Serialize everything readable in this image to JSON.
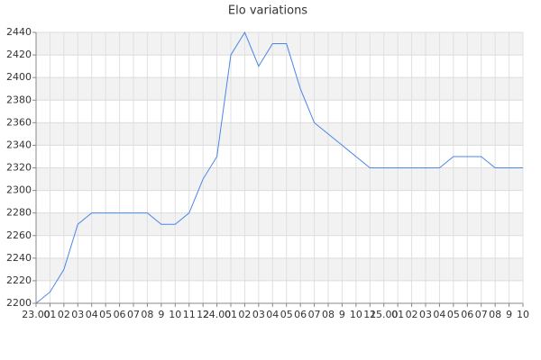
{
  "chart_data": {
    "type": "line",
    "title": "Elo variations",
    "categories": [
      "23.00",
      "01",
      "02",
      "03",
      "04",
      "05",
      "06",
      "07",
      "08",
      "9",
      "10",
      "11",
      "12",
      "24.00",
      "01",
      "02",
      "03",
      "04",
      "05",
      "06",
      "07",
      "08",
      "9",
      "10",
      "11",
      "25.00",
      "01",
      "02",
      "03",
      "04",
      "05",
      "06",
      "07",
      "08",
      "9",
      "10"
    ],
    "values": [
      2200,
      2210,
      2230,
      2270,
      2280,
      2280,
      2280,
      2280,
      2280,
      2270,
      2270,
      2280,
      2310,
      2330,
      2420,
      2440,
      2410,
      2430,
      2430,
      2390,
      2360,
      2350,
      2340,
      2330,
      2320,
      2320,
      2320,
      2320,
      2320,
      2320,
      2330,
      2330,
      2330,
      2320,
      2320,
      2320
    ],
    "color": "#4a86e8",
    "ylim": [
      2200,
      2440
    ],
    "yticks": [
      2200,
      2220,
      2240,
      2260,
      2280,
      2300,
      2320,
      2340,
      2360,
      2380,
      2400,
      2420,
      2440
    ],
    "grid": true
  }
}
